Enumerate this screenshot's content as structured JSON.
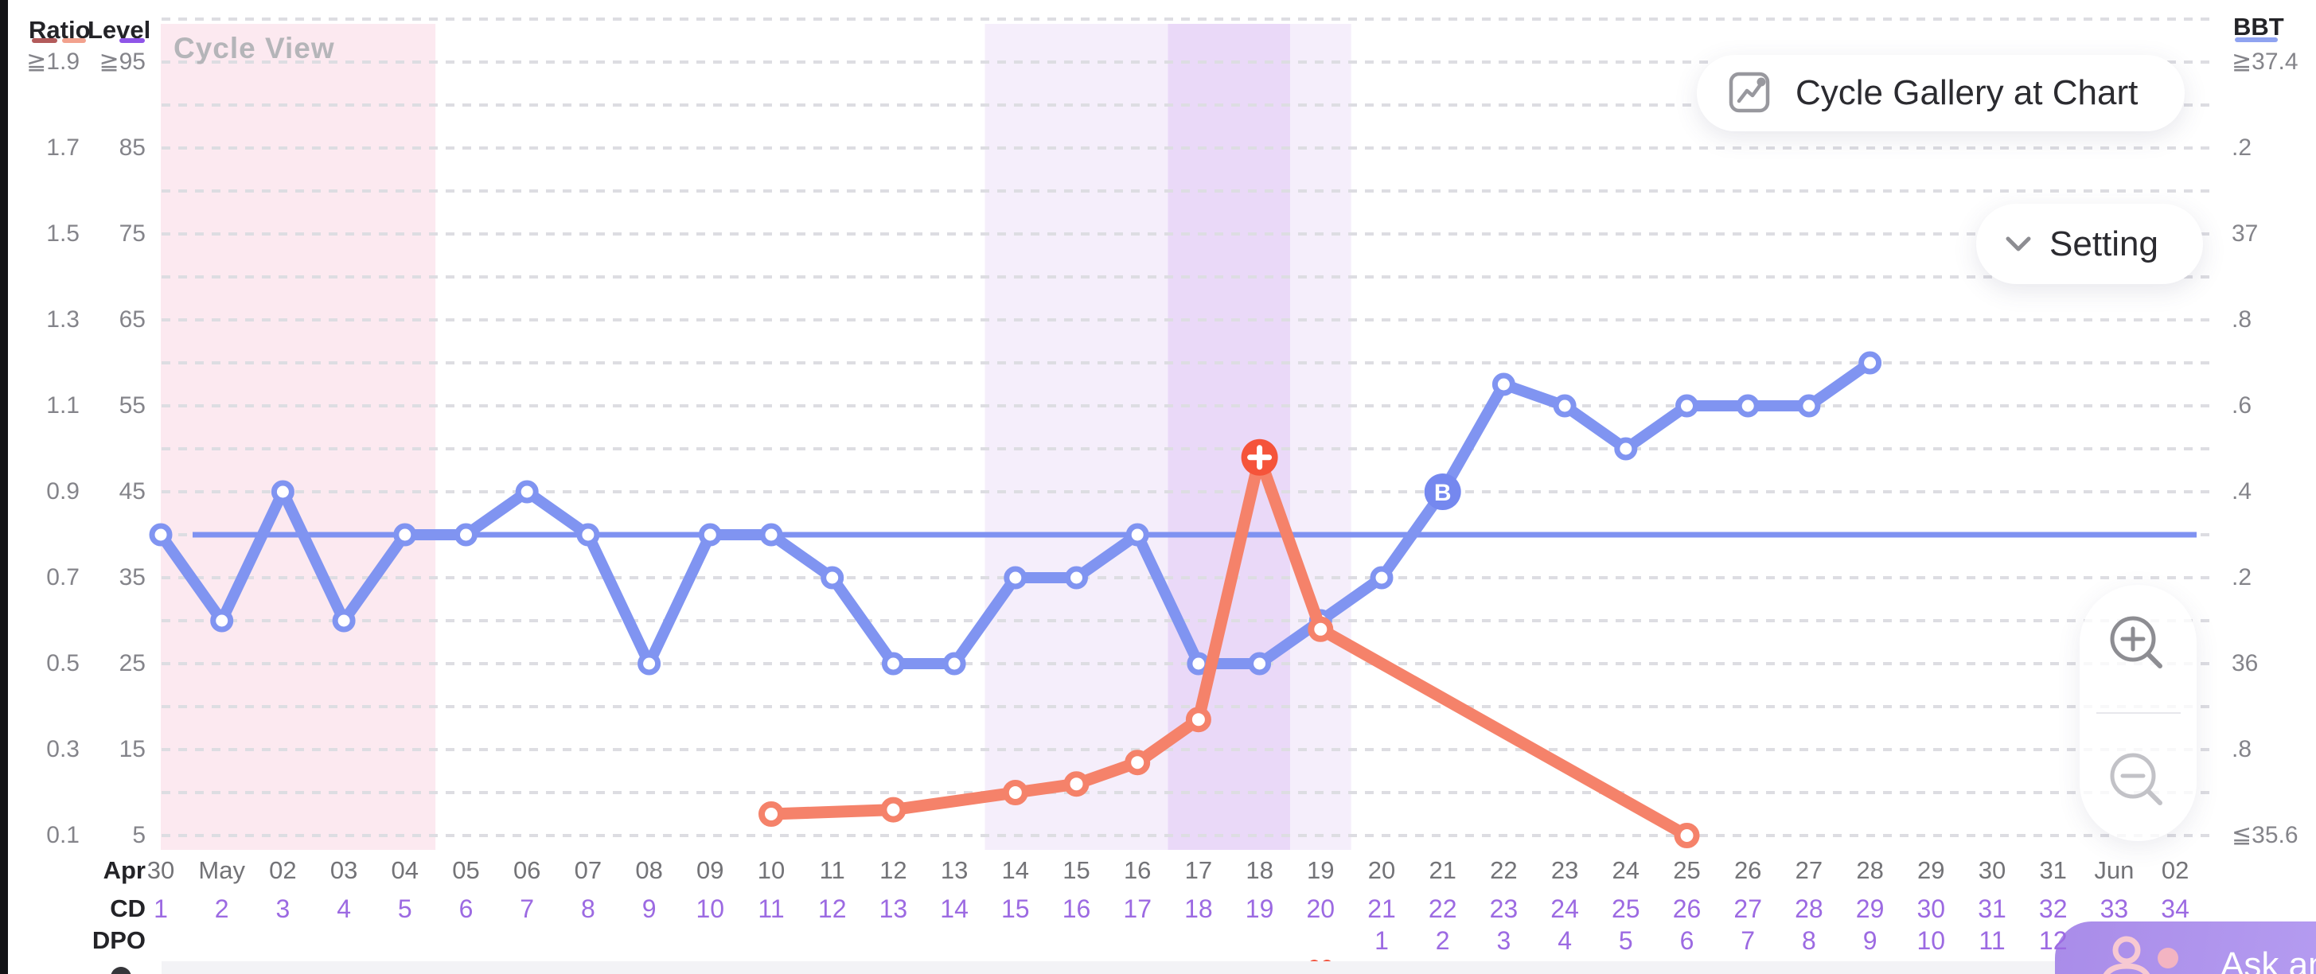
{
  "watermark": "Cycle View",
  "axes": {
    "ratio": {
      "header": "Ratio",
      "ticks": [
        "≧1.9",
        "1.7",
        "1.5",
        "1.3",
        "1.1",
        "0.9",
        "0.7",
        "0.5",
        "0.3",
        "0.1"
      ]
    },
    "level": {
      "header": "Level",
      "ticks": [
        "≧95",
        "85",
        "75",
        "65",
        "55",
        "45",
        "35",
        "25",
        "15",
        "5"
      ]
    },
    "bbt": {
      "header": "BBT",
      "ticks": [
        "≧37.4",
        ".2",
        "37",
        ".8",
        ".6",
        ".4",
        ".2",
        "36",
        ".8",
        "≦35.6"
      ]
    }
  },
  "legend_colors": {
    "ratio_swatch_1": "#b35b5b",
    "ratio_swatch_2": "#f2a28e",
    "level_swatch": "#8f55e8",
    "bbt_swatch": "#8fa3f0"
  },
  "buttons": {
    "gallery": "Cycle Gallery at Chart",
    "setting": "Setting",
    "ask": "Ask an",
    "zoom_in_icon": "magnifier-plus",
    "zoom_out_icon": "magnifier-minus"
  },
  "rows": {
    "month_label": "Apr",
    "cd_label": "CD",
    "dpo_label": "DPO",
    "dates": [
      "30",
      "May",
      "02",
      "03",
      "04",
      "05",
      "06",
      "07",
      "08",
      "09",
      "10",
      "11",
      "12",
      "13",
      "14",
      "15",
      "16",
      "17",
      "18",
      "19",
      "20",
      "21",
      "22",
      "23",
      "24",
      "25",
      "26",
      "27",
      "28",
      "29",
      "30",
      "31",
      "Jun",
      "02"
    ],
    "cd": [
      "1",
      "2",
      "3",
      "4",
      "5",
      "6",
      "7",
      "8",
      "9",
      "10",
      "11",
      "12",
      "13",
      "14",
      "15",
      "16",
      "17",
      "18",
      "19",
      "20",
      "21",
      "22",
      "23",
      "24",
      "25",
      "26",
      "27",
      "28",
      "29",
      "30",
      "31",
      "32",
      "33",
      "34"
    ],
    "dpo": [
      "",
      "",
      "",
      "",
      "",
      "",
      "",
      "",
      "",
      "",
      "",
      "",
      "",
      "",
      "",
      "",
      "",
      "",
      "",
      "",
      "1",
      "2",
      "3",
      "4",
      "5",
      "6",
      "7",
      "8",
      "9",
      "10",
      "11",
      "12",
      "",
      ""
    ]
  },
  "chart_data": {
    "type": "line",
    "x": {
      "cycle_days": [
        1,
        2,
        3,
        4,
        5,
        6,
        7,
        8,
        9,
        10,
        11,
        12,
        13,
        14,
        15,
        16,
        17,
        18,
        19,
        20,
        21,
        22,
        23,
        24,
        25,
        26,
        27,
        28,
        29,
        30,
        31,
        32,
        33,
        34
      ],
      "dates": [
        "Apr 30",
        "May 1",
        "May 2",
        "May 3",
        "May 4",
        "May 5",
        "May 6",
        "May 7",
        "May 8",
        "May 9",
        "May 10",
        "May 11",
        "May 12",
        "May 13",
        "May 14",
        "May 15",
        "May 16",
        "May 17",
        "May 18",
        "May 19",
        "May 20",
        "May 21",
        "May 22",
        "May 23",
        "May 24",
        "May 25",
        "May 26",
        "May 27",
        "May 28",
        "May 29",
        "May 30",
        "May 31",
        "Jun 1",
        "Jun 2"
      ]
    },
    "series": [
      {
        "name": "BBT",
        "axis": "bbt",
        "unit": "C",
        "color": "#8094f1",
        "cds": [
          1,
          2,
          3,
          4,
          5,
          6,
          7,
          8,
          9,
          10,
          11,
          12,
          13,
          14,
          15,
          16,
          17,
          18,
          19,
          20,
          21,
          22,
          23,
          24,
          25,
          26,
          27,
          28,
          29
        ],
        "values": [
          36.3,
          36.1,
          36.4,
          36.1,
          36.3,
          36.3,
          36.4,
          36.3,
          36.0,
          36.3,
          36.3,
          36.2,
          36.0,
          36.0,
          36.2,
          36.2,
          36.3,
          36.0,
          36.0,
          36.1,
          36.2,
          36.4,
          36.65,
          36.6,
          36.5,
          36.6,
          36.6,
          36.6,
          36.7
        ]
      },
      {
        "name": "Test Ratio",
        "axis": "ratio",
        "color": "#f5826a",
        "cds": [
          11,
          13,
          15,
          16,
          17,
          18,
          19,
          20,
          26
        ],
        "values": [
          0.15,
          0.16,
          0.2,
          0.22,
          0.27,
          0.37,
          0.98,
          0.58,
          0.1
        ]
      }
    ],
    "coverline": {
      "value": 36.3,
      "axis": "bbt",
      "color": "#7f92f1"
    },
    "bands": [
      {
        "name": "period",
        "cd_from": 1,
        "cd_to": 5,
        "color": "#fce9f0"
      },
      {
        "name": "fertile-window",
        "cd_from": 15,
        "cd_to": 20,
        "color": "#f5eefb"
      },
      {
        "name": "peak-days",
        "cd_from": 18,
        "cd_to": 19,
        "color": "#ead9f8"
      }
    ],
    "markers": [
      {
        "type": "positive-test-badge",
        "glyph": "+",
        "cd": 19,
        "axis": "ratio",
        "value": 0.98,
        "color": "#f5543a"
      },
      {
        "type": "b-flag-badge",
        "glyph": "B",
        "cd": 22,
        "axis": "bbt",
        "value": 36.4,
        "color": "#7588ef"
      },
      {
        "type": "heart",
        "cd": 20,
        "color": "#f2543e"
      }
    ],
    "y_axes": {
      "ratio": {
        "min": 0.1,
        "max": 1.9,
        "tick_step": 0.2
      },
      "level": {
        "min": 5,
        "max": 95,
        "tick_step": 10
      },
      "bbt": {
        "min": 35.6,
        "max": 37.4,
        "tick_step": 0.2
      }
    },
    "grid": {
      "style": "dashed",
      "color": "#dddde2",
      "rows_per_tick": 2
    }
  },
  "misc": {
    "left_edge_color": "#131316",
    "bottom_band_color": "#f3f3f6",
    "bottom_dot_color": "#36363a"
  }
}
